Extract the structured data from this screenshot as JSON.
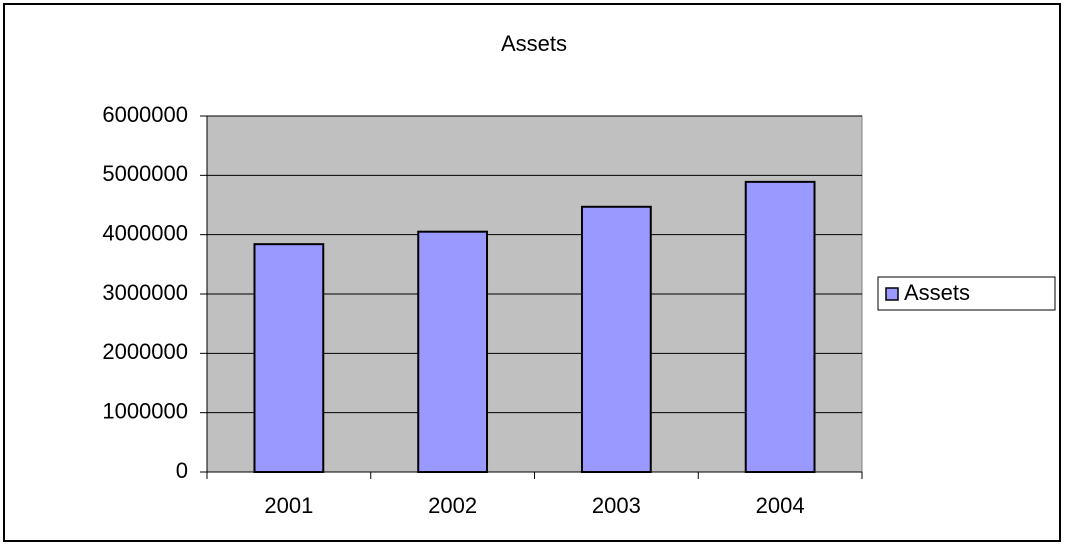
{
  "chart_data": {
    "type": "bar",
    "title": "Assets",
    "categories": [
      "2001",
      "2002",
      "2003",
      "2004"
    ],
    "series": [
      {
        "name": "Assets",
        "color": "#9999ff",
        "values": [
          3840000,
          4050000,
          4470000,
          4890000
        ]
      }
    ],
    "ylim": [
      0,
      6000000
    ],
    "yticks": [
      0,
      1000000,
      2000000,
      3000000,
      4000000,
      5000000,
      6000000
    ],
    "grid": true,
    "plot_background": "#c0c0c0",
    "legend": "right"
  }
}
